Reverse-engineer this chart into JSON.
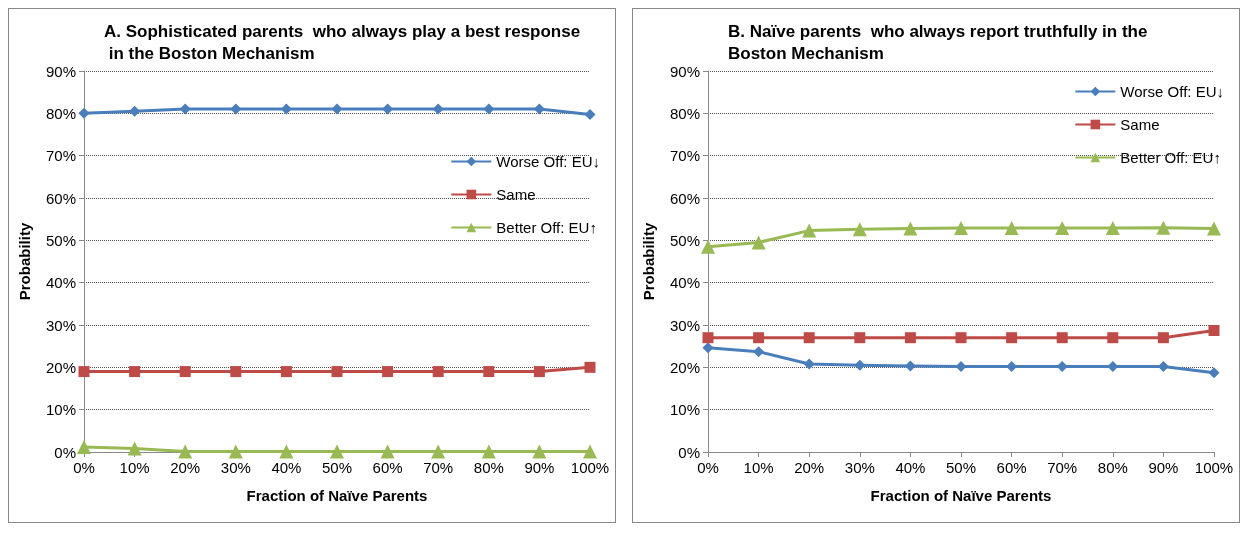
{
  "chart_data": [
    {
      "type": "line",
      "title": "A. Sophisticated parents  who always play a best response in the Boston Mechanism",
      "xlabel": "Fraction of Naïve Parents",
      "ylabel": "Probability",
      "categories": [
        "0%",
        "10%",
        "20%",
        "30%",
        "40%",
        "50%",
        "60%",
        "70%",
        "80%",
        "90%",
        "100%"
      ],
      "ylim": [
        0,
        90
      ],
      "yticks": [
        {
          "value": 0,
          "label": "0%"
        },
        {
          "value": 10,
          "label": "10%"
        },
        {
          "value": 20,
          "label": "20%"
        },
        {
          "value": 30,
          "label": "30%"
        },
        {
          "value": 40,
          "label": "40%"
        },
        {
          "value": 50,
          "label": "50%"
        },
        {
          "value": 60,
          "label": "60%"
        },
        {
          "value": 70,
          "label": "70%"
        },
        {
          "value": 80,
          "label": "80%"
        },
        {
          "value": 90,
          "label": "90%"
        }
      ],
      "grid": "y",
      "legend": "right",
      "series": [
        {
          "name": "Worse Off: EU↓",
          "color": "#4a7ebb",
          "marker": "diamond",
          "values": [
            80,
            80.5,
            81,
            81,
            81,
            81,
            81,
            81,
            81,
            81,
            79.7
          ]
        },
        {
          "name": "Same",
          "color": "#be4b48",
          "marker": "square",
          "values": [
            19,
            19,
            19,
            19,
            19,
            19,
            19,
            19,
            19,
            19,
            20
          ]
        },
        {
          "name": "Better Off: EU↑",
          "color": "#98b954",
          "marker": "triangle",
          "values": [
            1.2,
            0.8,
            0.1,
            0.1,
            0.1,
            0.1,
            0.1,
            0.1,
            0.1,
            0.1,
            0.1
          ]
        }
      ]
    },
    {
      "type": "line",
      "title": "B. Naïve parents  who always report truthfully in the Boston Mechanism",
      "xlabel": "Fraction of Naïve Parents",
      "ylabel": "Probability",
      "categories": [
        "0%",
        "10%",
        "20%",
        "30%",
        "40%",
        "50%",
        "60%",
        "70%",
        "80%",
        "90%",
        "100%"
      ],
      "ylim": [
        0,
        90
      ],
      "yticks": [
        {
          "value": 0,
          "label": "0%"
        },
        {
          "value": 10,
          "label": "10%"
        },
        {
          "value": 20,
          "label": "20%"
        },
        {
          "value": 30,
          "label": "30%"
        },
        {
          "value": 40,
          "label": "40%"
        },
        {
          "value": 50,
          "label": "50%"
        },
        {
          "value": 60,
          "label": "60%"
        },
        {
          "value": 70,
          "label": "70%"
        },
        {
          "value": 80,
          "label": "80%"
        },
        {
          "value": 90,
          "label": "90%"
        }
      ],
      "grid": "y",
      "legend": "top right",
      "series": [
        {
          "name": "Worse Off: EU↓",
          "color": "#4a7ebb",
          "marker": "diamond",
          "values": [
            24.6,
            23.7,
            20.8,
            20.5,
            20.3,
            20.2,
            20.2,
            20.2,
            20.2,
            20.2,
            18.7
          ]
        },
        {
          "name": "Same",
          "color": "#be4b48",
          "marker": "square",
          "values": [
            27,
            27,
            27,
            27,
            27,
            27,
            27,
            27,
            27,
            27,
            28.7
          ]
        },
        {
          "name": "Better Off: EU↑",
          "color": "#98b954",
          "marker": "triangle",
          "values": [
            48.5,
            49.5,
            52.3,
            52.6,
            52.8,
            52.9,
            52.9,
            52.9,
            52.9,
            53,
            52.8
          ]
        }
      ]
    }
  ]
}
